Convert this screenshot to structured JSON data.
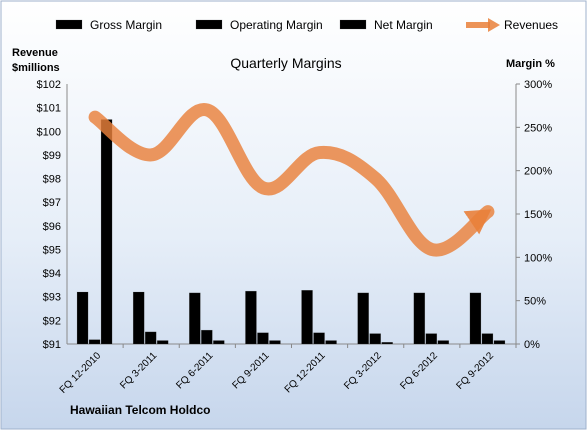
{
  "footer_text": "Hawaiian Telcom Holdco",
  "chart_data": {
    "type": "bar",
    "title": "Quarterly Margins",
    "categories": [
      "FQ 12-2010",
      "FQ 3-2011",
      "FQ 6-2011",
      "FQ 9-2011",
      "FQ 12-2011",
      "FQ 3-2012",
      "FQ 6-2012",
      "FQ 9-2012"
    ],
    "ylabel_left": "Revenue $millions",
    "ylabel_left_lines": [
      "Revenue",
      "$millions"
    ],
    "ylabel_right": "Margin %",
    "ylim_left": [
      91,
      102
    ],
    "ylim_right": [
      0,
      300
    ],
    "yticks_left": [
      "$91",
      "$92",
      "$93",
      "$94",
      "$95",
      "$96",
      "$97",
      "$98",
      "$99",
      "$100",
      "$101",
      "$102"
    ],
    "yticks_right": [
      "0%",
      "50%",
      "100%",
      "150%",
      "200%",
      "250%",
      "300%"
    ],
    "series": [
      {
        "name": "Gross Margin",
        "type": "bar",
        "axis": "right",
        "color": "#1e8a4a",
        "values": [
          60,
          60,
          59,
          61,
          62,
          59,
          59,
          59
        ]
      },
      {
        "name": "Operating Margin",
        "type": "bar",
        "axis": "right",
        "color": "#4a74c0",
        "values": [
          5,
          14,
          16,
          13,
          13,
          12,
          12,
          12
        ]
      },
      {
        "name": "Net Margin",
        "type": "bar",
        "axis": "right",
        "color": "#a7cf62",
        "values": [
          259,
          4,
          4,
          4,
          4,
          2,
          4,
          4
        ]
      },
      {
        "name": "Revenues",
        "type": "line",
        "axis": "left",
        "color": "#e9803a",
        "values": [
          100.6,
          99.0,
          100.9,
          97.6,
          99.1,
          98.0,
          95.0,
          96.6
        ]
      }
    ],
    "legend_position": "top",
    "grid": false
  }
}
